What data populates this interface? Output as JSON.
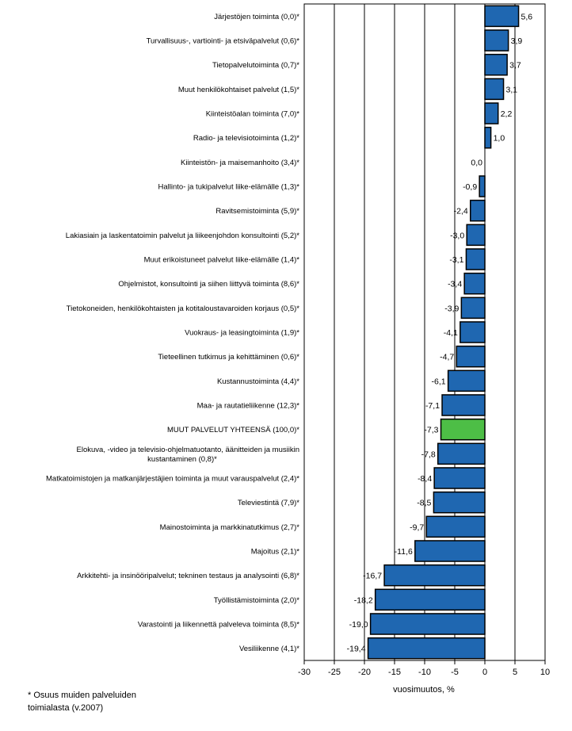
{
  "chart_data": {
    "type": "bar",
    "orientation": "horizontal",
    "title": "",
    "xlabel": "vuosimuutos, %",
    "ylabel": "",
    "xlim": [
      -30,
      10
    ],
    "xticks": [
      -30,
      -25,
      -20,
      -15,
      -10,
      -5,
      0,
      5,
      10
    ],
    "xtick_labels": [
      "-30",
      "-25",
      "-20",
      "-15",
      "-10",
      "-5",
      "0",
      "5",
      "10"
    ],
    "grid": "vertical",
    "legend": "none",
    "colors": {
      "default": "#1F67B1",
      "highlight": "#4DBE46"
    },
    "categories": [
      [
        "Järjestöjen toiminta (0,0)*"
      ],
      [
        "Turvallisuus-, vartiointi- ja etsiväpalvelut (0,6)*"
      ],
      [
        "Tietopalvelutoiminta (0,7)*"
      ],
      [
        "Muut henkilökohtaiset palvelut (1,5)*"
      ],
      [
        "Kiinteistöalan toiminta (7,0)*"
      ],
      [
        "Radio- ja televisiotoiminta (1,2)*"
      ],
      [
        "Kiinteistön- ja maisemanhoito (3,4)*"
      ],
      [
        "Hallinto- ja tukipalvelut liike-elämälle (1,3)*"
      ],
      [
        "Ravitsemistoiminta (5,9)*"
      ],
      [
        "Lakiasiain ja laskentatoimin palvelut ja liikeenjohdon konsultointi (5,2)*"
      ],
      [
        "Muut erikoistuneet palvelut liike-elämälle (1,4)*"
      ],
      [
        "Ohjelmistot, konsultointi ja siihen liittyvä toiminta (8,6)*"
      ],
      [
        "Tietokoneiden, henkilökohtaisten ja kotitaloustavaroiden korjaus (0,5)*"
      ],
      [
        "Vuokraus- ja leasingtoiminta (1,9)*"
      ],
      [
        "Tieteellinen tutkimus ja kehittäminen (0,6)*"
      ],
      [
        "Kustannustoiminta (4,4)*"
      ],
      [
        "Maa- ja rautatieliikenne (12,3)*"
      ],
      [
        "MUUT PALVELUT YHTEENSÄ (100,0)*"
      ],
      [
        "Elokuva, -video ja televisio-ohjelmatuotanto, äänitteiden ja musiikin",
        "kustantaminen (0,8)*"
      ],
      [
        "Matkatoimistojen ja matkanjärjestäjien toiminta ja muut varauspalvelut (2,4)*"
      ],
      [
        "Televiestintä (7,9)*"
      ],
      [
        "Mainostoiminta ja markkinatutkimus (2,7)*"
      ],
      [
        "Majoitus (2,1)*"
      ],
      [
        "Arkkitehti- ja insinööripalvelut; tekninen testaus ja analysointi (6,8)*"
      ],
      [
        "Työllistämistoiminta (2,0)*"
      ],
      [
        "Varastointi  ja liikennettä palveleva toiminta (8,5)*"
      ],
      [
        "Vesiliikenne (4,1)*"
      ]
    ],
    "values": [
      5.6,
      3.9,
      3.7,
      3.1,
      2.2,
      1.0,
      0.0,
      -0.9,
      -2.4,
      -3.0,
      -3.1,
      -3.4,
      -3.9,
      -4.1,
      -4.7,
      -6.1,
      -7.1,
      -7.3,
      -7.8,
      -8.4,
      -8.5,
      -9.7,
      -11.6,
      -16.7,
      -18.2,
      -19.0,
      -19.4
    ],
    "value_labels": [
      "5,6",
      "3,9",
      "3,7",
      "3,1",
      "2,2",
      "1,0",
      "0,0",
      "-0,9",
      "-2,4",
      "-3,0",
      "-3,1",
      "-3,4",
      "-3,9",
      "-4,1",
      "-4,7",
      "-6,1",
      "-7,1",
      "-7,3",
      "-7,8",
      "-8,4",
      "-8,5",
      "-9,7",
      "-11,6",
      "-16,7",
      "-18,2",
      "-19,0",
      "-19,4"
    ],
    "highlight_index": 17
  },
  "footnote": {
    "line1": "* Osuus muiden palveluiden",
    "line2": "toimialasta (v.2007)"
  }
}
